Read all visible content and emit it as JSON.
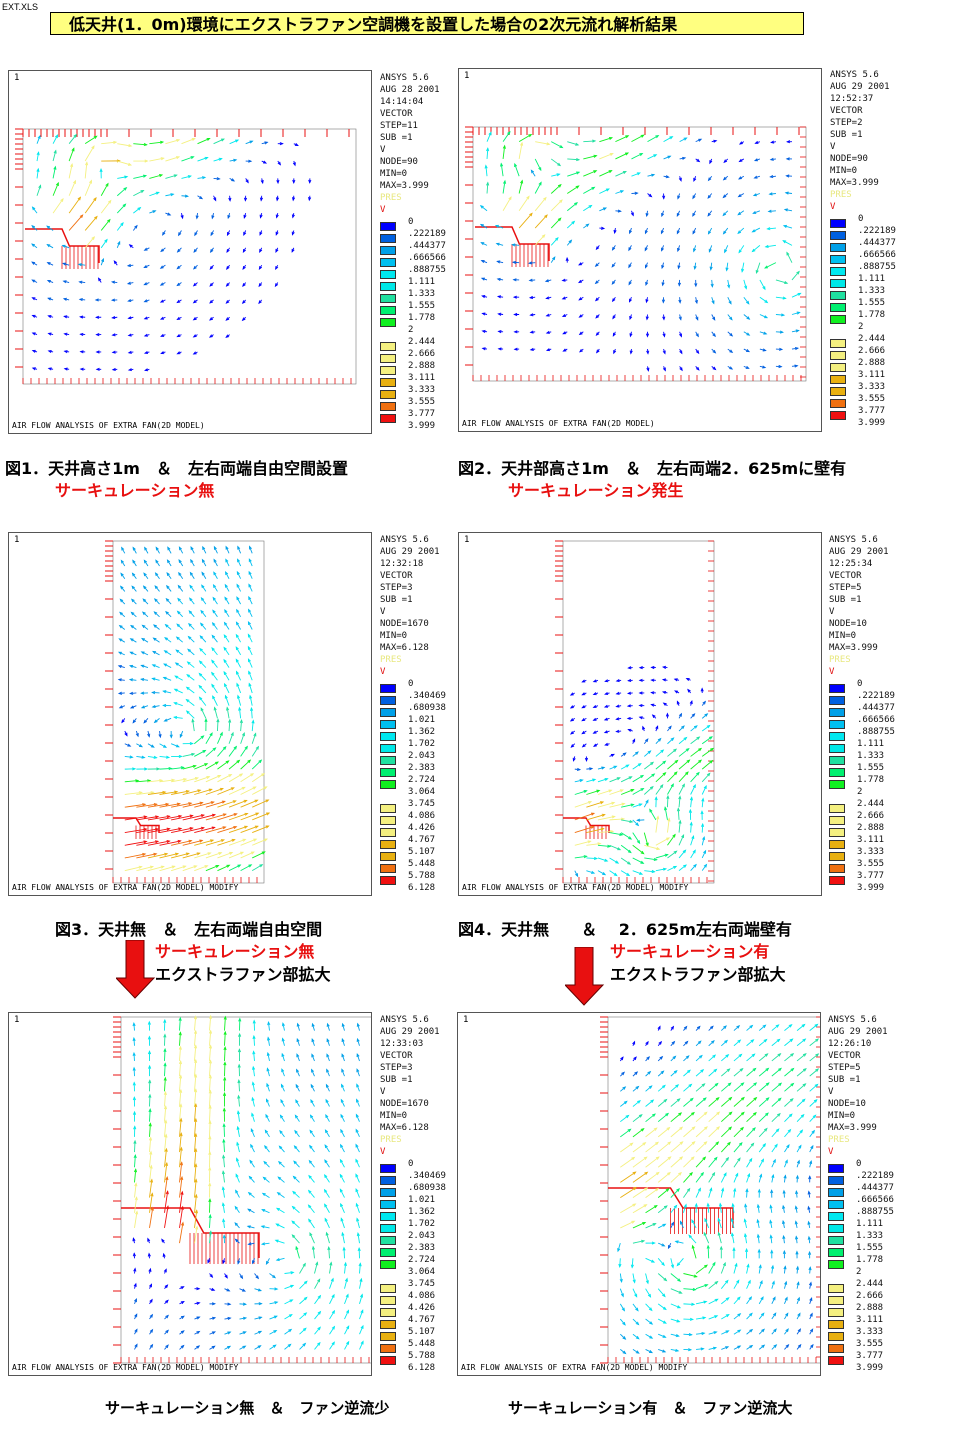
{
  "file_name": "EXT.XLS",
  "title": "低天井(1．0m)環境にエクストラファン空調機を設置した場合の2次元流れ解析結果",
  "legend_colors": [
    "#0000ff",
    "#0060e0",
    "#00a0e8",
    "#00c0f0",
    "#00e8f0",
    "#00e8e8",
    "#20e0a0",
    "#00f070",
    "#10f020",
    "#f4f080",
    "#f4f080",
    "#f4f080",
    "#e8b010",
    "#e8b010",
    "#f07010",
    "#f01010"
  ],
  "panels": [
    {
      "num": "1",
      "footer": "AIR FLOW ANALYSIS OF EXTRA FAN(2D MODEL)",
      "info": [
        "ANSYS 5.6",
        "AUG 28 2001",
        "14:14:04",
        "VECTOR",
        "STEP=11",
        "SUB =1",
        "V",
        "NODE=90",
        "MIN=0",
        "MAX=3.999"
      ],
      "pres": "PRES",
      "v": "V",
      "values": [
        "0",
        ".222189",
        ".444377",
        ".666566",
        ".888755",
        "1.111",
        "1.333",
        "1.555",
        "1.778",
        "2",
        "2.444",
        "2.666",
        "2.888",
        "3.111",
        "3.333",
        "3.555",
        "3.777",
        "3.999"
      ]
    },
    {
      "num": "1",
      "footer": "AIR FLOW ANALYSIS OF EXTRA FAN(2D MODEL)",
      "info": [
        "ANSYS 5.6",
        "AUG 29 2001",
        "12:52:37",
        "VECTOR",
        "STEP=2",
        "SUB =1",
        "V",
        "NODE=90",
        "MIN=0",
        "MAX=3.999"
      ],
      "pres": "PRES",
      "v": "V",
      "values": [
        "0",
        ".222189",
        ".444377",
        ".666566",
        ".888755",
        "1.111",
        "1.333",
        "1.555",
        "1.778",
        "2",
        "2.444",
        "2.666",
        "2.888",
        "3.111",
        "3.333",
        "3.555",
        "3.777",
        "3.999"
      ]
    },
    {
      "num": "1",
      "footer": "AIR FLOW ANALYSIS OF EXTRA FAN(2D MODEL) MODIFY",
      "info": [
        "ANSYS 5.6",
        "AUG 29 2001",
        "12:32:18",
        "VECTOR",
        "STEP=3",
        "SUB =1",
        "V",
        "NODE=1670",
        "MIN=0",
        "MAX=6.128"
      ],
      "pres": "PRES",
      "v": "V",
      "values": [
        "0",
        ".340469",
        ".680938",
        "1.021",
        "1.362",
        "1.702",
        "2.043",
        "2.383",
        "2.724",
        "3.064",
        "3.745",
        "4.086",
        "4.426",
        "4.767",
        "5.107",
        "5.448",
        "5.788",
        "6.128"
      ]
    },
    {
      "num": "1",
      "footer": "AIR FLOW ANALYSIS OF EXTRA FAN(2D MODEL) MODIFY",
      "info": [
        "ANSYS 5.6",
        "AUG 29 2001",
        "12:25:34",
        "VECTOR",
        "STEP=5",
        "SUB =1",
        "V",
        "NODE=10",
        "MIN=0",
        "MAX=3.999"
      ],
      "pres": "PRES",
      "v": "V",
      "values": [
        "0",
        ".222189",
        ".444377",
        ".666566",
        ".888755",
        "1.111",
        "1.333",
        "1.555",
        "1.778",
        "2",
        "2.444",
        "2.666",
        "2.888",
        "3.111",
        "3.333",
        "3.555",
        "3.777",
        "3.999"
      ]
    },
    {
      "num": "1",
      "footer": "AIR FLOW ANALYSIS OF EXTRA FAN(2D MODEL) MODIFY",
      "info": [
        "ANSYS 5.6",
        "AUG 29 2001",
        "12:33:03",
        "VECTOR",
        "STEP=3",
        "SUB =1",
        "V",
        "NODE=1670",
        "MIN=0",
        "MAX=6.128"
      ],
      "pres": "PRES",
      "v": "V",
      "values": [
        "0",
        ".340469",
        ".680938",
        "1.021",
        "1.362",
        "1.702",
        "2.043",
        "2.383",
        "2.724",
        "3.064",
        "3.745",
        "4.086",
        "4.426",
        "4.767",
        "5.107",
        "5.448",
        "5.788",
        "6.128"
      ]
    },
    {
      "num": "1",
      "footer": "AIR FLOW ANALYSIS OF EXTRA FAN(2D MODEL) MODIFY",
      "info": [
        "ANSYS 5.6",
        "AUG 29 2001",
        "12:26:10",
        "VECTOR",
        "STEP=5",
        "SUB =1",
        "V",
        "NODE=10",
        "MIN=0",
        "MAX=3.999"
      ],
      "pres": "PRES",
      "v": "V",
      "values": [
        "0",
        ".222189",
        ".444377",
        ".666566",
        ".888755",
        "1.111",
        "1.333",
        "1.555",
        "1.778",
        "2",
        "2.444",
        "2.666",
        "2.888",
        "3.111",
        "3.333",
        "3.555",
        "3.777",
        "3.999"
      ]
    }
  ],
  "captions": {
    "fig1": "図1．天井高さ1m　＆　左右両端自由空間設置",
    "fig1_note": "サーキュレーション無",
    "fig2": "図2．天井部高さ1m　＆　左右両端2．625mに壁有",
    "fig2_note": "サーキュレーション発生",
    "fig3": "図3．天井無　＆　左右両端自由空間",
    "fig3_note": "サーキュレーション無",
    "fig3_sub": "エクストラファン部拡大",
    "fig4": "図4．天井無　　＆　 2．625m左右両端壁有",
    "fig4_note": "サーキュレーション有",
    "fig4_sub": "エクストラファン部拡大",
    "fig5": "サーキュレーション無　＆　ファン逆流少",
    "fig6": "サーキュレーション有　＆　ファン逆流大"
  }
}
